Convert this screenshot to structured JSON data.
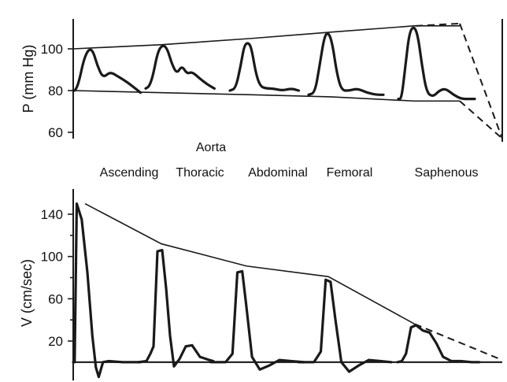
{
  "chart_data": [
    {
      "type": "line",
      "ylabel": "P (mm Hg)",
      "yticks": [
        60,
        80,
        100
      ],
      "ylim": [
        55,
        115
      ],
      "categories": [
        "Ascending",
        "Thoracic",
        "Abdominal",
        "Femoral",
        "Saphenous"
      ],
      "category_group_label": "Aorta",
      "upper_envelope": [
        100,
        102,
        105,
        108,
        111
      ],
      "lower_envelope": [
        80,
        79,
        78,
        77,
        75
      ],
      "extrapolated_limit": 57,
      "waveforms": [
        {
          "name": "Ascending",
          "t": [
            0,
            0.03,
            0.08,
            0.15,
            0.22,
            0.28,
            0.34,
            0.42,
            0.52,
            0.62,
            0.72,
            0.84,
            0.95
          ],
          "p": [
            80,
            80,
            84,
            95,
            100,
            99,
            92,
            86,
            89,
            87,
            85,
            82,
            79
          ]
        },
        {
          "name": "Thoracic",
          "t": [
            0,
            0.05,
            0.1,
            0.17,
            0.24,
            0.3,
            0.36,
            0.43,
            0.5,
            0.57,
            0.64,
            0.74,
            0.85,
            0.95
          ],
          "p": [
            81,
            82,
            87,
            99,
            102,
            100,
            93,
            88,
            92,
            88,
            89,
            86,
            83,
            81
          ]
        },
        {
          "name": "Abdominal",
          "t": [
            0,
            0.08,
            0.15,
            0.2,
            0.26,
            0.3,
            0.36,
            0.42,
            0.5,
            0.6,
            0.72,
            0.85,
            0.95
          ],
          "p": [
            80,
            81,
            92,
            102,
            103,
            100,
            88,
            82,
            81,
            81,
            80,
            81,
            80
          ]
        },
        {
          "name": "Femoral",
          "t": [
            0,
            0.08,
            0.14,
            0.2,
            0.25,
            0.3,
            0.36,
            0.42,
            0.52,
            0.62,
            0.74,
            0.86,
            0.95
          ],
          "p": [
            78,
            79,
            92,
            106,
            108,
            103,
            88,
            80,
            80,
            81,
            79,
            78,
            78
          ]
        },
        {
          "name": "Saphenous",
          "t": [
            0,
            0.04,
            0.09,
            0.14,
            0.2,
            0.25,
            0.3,
            0.36,
            0.44,
            0.52,
            0.6,
            0.7,
            0.8,
            0.9,
            0.97
          ],
          "p": [
            76,
            76,
            92,
            108,
            111,
            106,
            92,
            79,
            77,
            80,
            81,
            78,
            76,
            76,
            76
          ]
        }
      ]
    },
    {
      "type": "line",
      "ylabel": "V (cm/sec)",
      "yticks": [
        20,
        60,
        100,
        140
      ],
      "ylim": [
        -15,
        160
      ],
      "categories": [
        "Ascending",
        "Thoracic",
        "Abdominal",
        "Femoral",
        "Saphenous"
      ],
      "peak_envelope": [
        150,
        112,
        91,
        81,
        36
      ],
      "extrapolated_limit": 2,
      "waveforms": [
        {
          "name": "Ascending",
          "t": [
            0,
            0.02,
            0.05,
            0.12,
            0.2,
            0.27,
            0.32,
            0.36,
            0.42,
            0.5,
            0.7,
            0.95
          ],
          "v": [
            0,
            0,
            150,
            135,
            85,
            25,
            -5,
            -14,
            0,
            1,
            0,
            0
          ]
        },
        {
          "name": "Thoracic",
          "t": [
            0,
            0.1,
            0.15,
            0.19,
            0.24,
            0.3,
            0.35,
            0.4,
            0.45,
            0.52,
            0.6,
            0.68,
            0.78,
            0.9,
            0.95
          ],
          "v": [
            0,
            1,
            8,
            15,
            105,
            106,
            70,
            25,
            -4,
            3,
            15,
            16,
            5,
            2,
            1
          ]
        },
        {
          "name": "Abdominal",
          "t": [
            0,
            0.15,
            0.22,
            0.27,
            0.32,
            0.36,
            0.42,
            0.5,
            0.6,
            0.7,
            0.82,
            0.95
          ],
          "v": [
            0,
            0,
            8,
            85,
            86,
            55,
            5,
            -7,
            -3,
            2,
            1,
            0
          ]
        },
        {
          "name": "Femoral",
          "t": [
            0,
            0.16,
            0.23,
            0.28,
            0.33,
            0.38,
            0.44,
            0.52,
            0.62,
            0.72,
            0.84,
            0.95
          ],
          "v": [
            0,
            0,
            10,
            78,
            76,
            40,
            0,
            -9,
            -3,
            2,
            1,
            0
          ]
        },
        {
          "name": "Saphenous",
          "t": [
            0,
            0.05,
            0.1,
            0.16,
            0.22,
            0.3,
            0.38,
            0.46,
            0.54,
            0.64,
            0.75,
            0.88,
            0.97
          ],
          "v": [
            0,
            1,
            8,
            33,
            35,
            30,
            28,
            18,
            5,
            1,
            1,
            0,
            0
          ]
        }
      ]
    }
  ]
}
